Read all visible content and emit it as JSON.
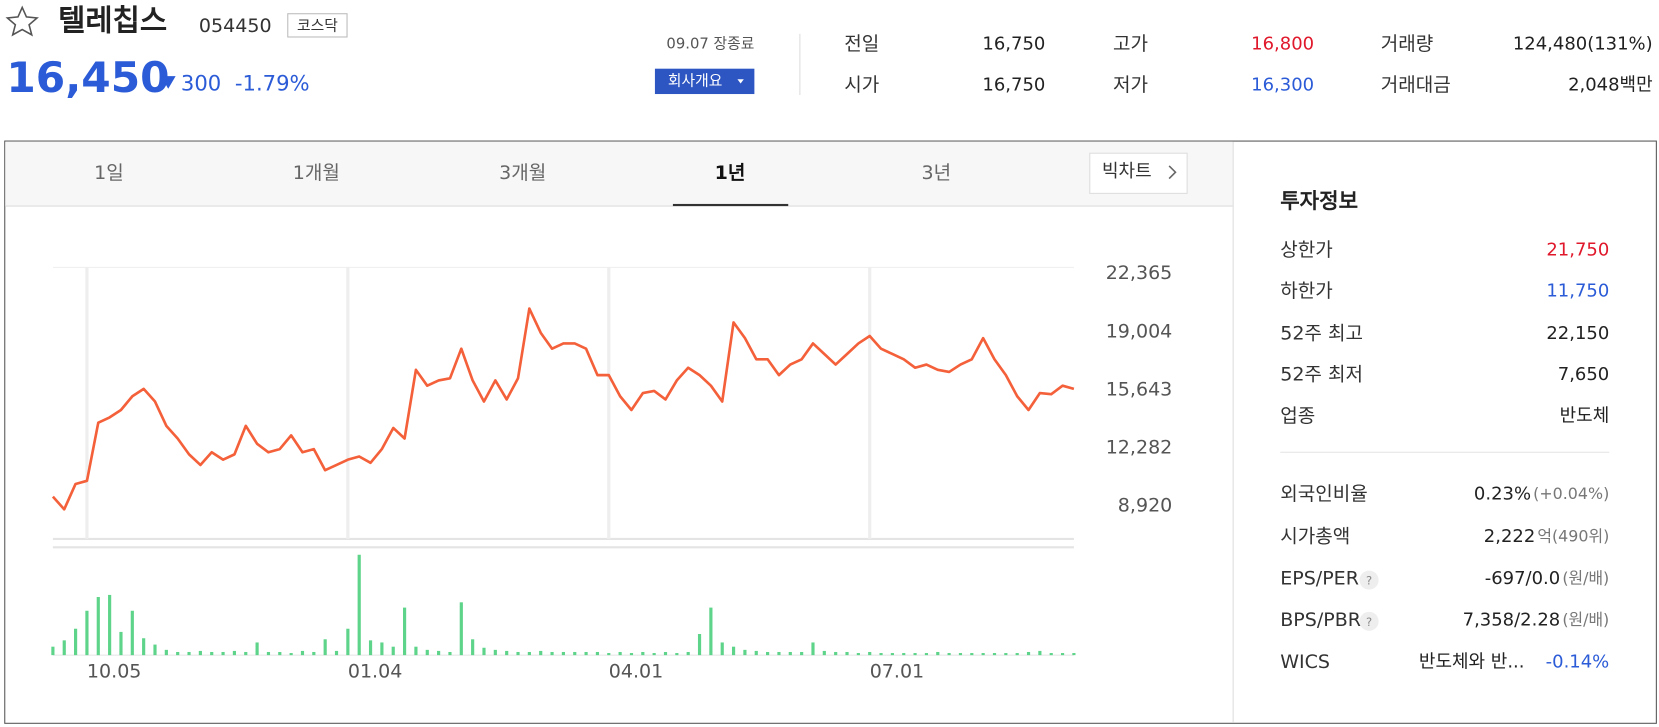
{
  "header": {
    "name": "텔레칩스",
    "code": "054450",
    "market": "코스닥",
    "price": "16,450",
    "change": "300",
    "change_pct": "-1.79%",
    "status": "09.07 장종료",
    "company_button": "회사개요"
  },
  "quotes": [
    {
      "label": "전일",
      "value": "16,750"
    },
    {
      "label": "시가",
      "value": "16,750"
    },
    {
      "label": "고가",
      "value": "16,800",
      "color": "#e0182b"
    },
    {
      "label": "저가",
      "value": "16,300",
      "color": "#2b5bd7"
    },
    {
      "label": "거래량",
      "value": "124,480(131%)"
    },
    {
      "label": "거래대금",
      "value": "2,048백만"
    }
  ],
  "tabs": [
    "1일",
    "1개월",
    "3개월",
    "1년",
    "3년"
  ],
  "bigchart": "빅차트",
  "chart_data": {
    "type": "line",
    "color": "#f4603a",
    "categories": [
      null,
      null,
      null,
      "10.05",
      null,
      null,
      null,
      null,
      null,
      null,
      null,
      null,
      null,
      null,
      null,
      null,
      null,
      null,
      null,
      null,
      null,
      null,
      null,
      null,
      null,
      null,
      "01.04",
      null,
      null,
      null,
      null,
      null,
      null,
      null,
      null,
      null,
      null,
      null,
      null,
      null,
      null,
      null,
      null,
      null,
      null,
      null,
      null,
      null,
      null,
      "04.01",
      null,
      null,
      null,
      null,
      null,
      null,
      null,
      null,
      null,
      null,
      null,
      null,
      null,
      null,
      null,
      null,
      null,
      null,
      null,
      null,
      null,
      null,
      "07.01",
      null,
      null,
      null,
      null,
      null,
      null,
      null,
      null,
      null,
      null,
      null,
      null,
      null,
      null,
      null,
      null,
      null,
      null
    ],
    "values": [
      9470,
      8736,
      10203,
      10386,
      13747,
      14053,
      14480,
      15274,
      15702,
      14969,
      13564,
      12830,
      11914,
      11303,
      12036,
      11608,
      11914,
      13564,
      12525,
      12036,
      12219,
      13014,
      12036,
      12219,
      10997,
      11303,
      11608,
      11792,
      11425,
      12219,
      13441,
      12830,
      16802,
      15885,
      16191,
      16313,
      18024,
      16191,
      14969,
      16191,
      15091,
      16313,
      20346,
      18940,
      18024,
      18329,
      18329,
      18024,
      16496,
      16496,
      15274,
      14480,
      15458,
      15580,
      15091,
      16191,
      16924,
      16496,
      15885,
      14969,
      19551,
      18635,
      17413,
      17413,
      16496,
      17107,
      17413,
      18329,
      17718,
      17107,
      17718,
      18329,
      18757,
      18024,
      17718,
      17413,
      16924,
      17107,
      16802,
      16680,
      17107,
      17413,
      18635,
      17413,
      16496,
      15274,
      14480,
      15458,
      15397,
      15885,
      15702
    ],
    "ylim": [
      7026,
      22732
    ],
    "yticks": [
      {
        "value": 22365,
        "label": "22,365"
      },
      {
        "value": 19004,
        "label": "19,004"
      },
      {
        "value": 15643,
        "label": "15,643"
      },
      {
        "value": 12282,
        "label": "12,282"
      },
      {
        "value": 8920,
        "label": "8,920"
      }
    ],
    "volume": {
      "color": "#5ed48a",
      "vlim": [
        0,
        100
      ],
      "values": [
        8,
        14,
        25,
        42,
        55,
        57,
        22,
        42,
        16,
        10,
        5,
        3,
        3,
        4,
        3,
        3,
        4,
        3,
        12,
        3,
        3,
        2,
        4,
        3,
        15,
        4,
        25,
        95,
        14,
        12,
        8,
        45,
        8,
        5,
        4,
        3,
        50,
        15,
        7,
        5,
        4,
        3,
        3,
        4,
        3,
        3,
        3,
        3,
        3,
        2,
        3,
        2,
        3,
        2,
        3,
        2,
        3,
        20,
        45,
        12,
        8,
        5,
        4,
        3,
        3,
        3,
        3,
        12,
        4,
        3,
        3,
        2,
        3,
        2,
        2,
        2,
        2,
        2,
        3,
        2,
        2,
        2,
        2,
        2,
        2,
        2,
        3,
        4,
        2,
        2,
        2
      ]
    }
  },
  "invest_info": {
    "title": "투자정보",
    "rows": [
      {
        "label": "상한가",
        "value": "21,750",
        "color": "#e0182b"
      },
      {
        "label": "하한가",
        "value": "11,750",
        "color": "#2b5bd7"
      },
      {
        "label": "52주 최고",
        "value": "22,150"
      },
      {
        "label": "52주 최저",
        "value": "7,650"
      },
      {
        "label": "업종",
        "value": "반도체"
      },
      {
        "label": "외국인비율",
        "value": "0.23%",
        "unit": "(+0.04%)"
      },
      {
        "label": "시가총액",
        "value": "2,222",
        "unit": "억(490위)"
      },
      {
        "label": "EPS/PER",
        "value": "-697/0.0",
        "unit": "(원/배)"
      },
      {
        "label": "BPS/PBR",
        "value": "7,358/2.28",
        "unit": "(원/배)"
      },
      {
        "label": "WICS",
        "value": "반도체와 반...",
        "unit": "-0.14%",
        "unit_color": "#2b5bd7"
      }
    ]
  }
}
